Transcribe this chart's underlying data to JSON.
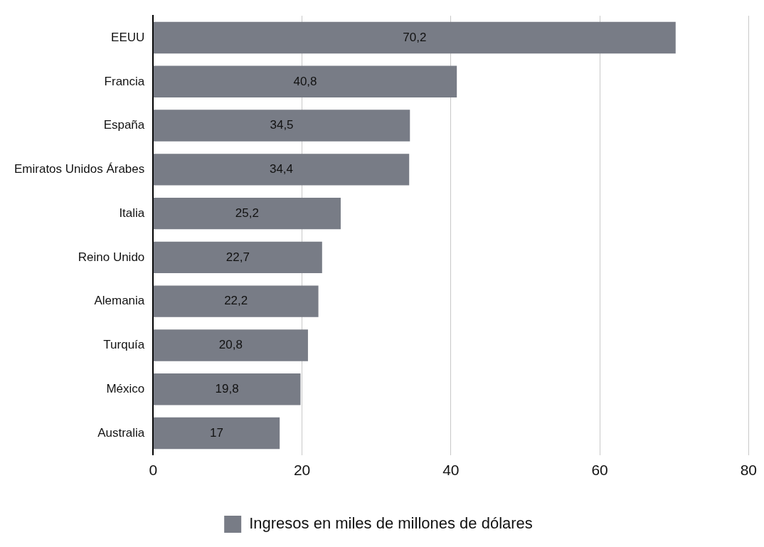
{
  "chart_data": {
    "type": "bar",
    "orientation": "horizontal",
    "categories": [
      "EEUU",
      "Francia",
      "España",
      "Emiratos Unidos Árabes",
      "Italia",
      "Reino Unido",
      "Alemania",
      "Turquía",
      "México",
      "Australia"
    ],
    "series": [
      {
        "name": "Ingresos en miles de millones de dólares",
        "color": "#787c86",
        "values": [
          70.2,
          40.8,
          34.5,
          34.4,
          25.2,
          22.7,
          22.2,
          20.8,
          19.8,
          17
        ],
        "value_labels": [
          "70,2",
          "40,8",
          "34,5",
          "34,4",
          "25,2",
          "22,7",
          "22,2",
          "20,8",
          "19,8",
          "17"
        ]
      }
    ],
    "xlim": [
      0,
      80
    ],
    "xticks": [
      0,
      20,
      40,
      60,
      80
    ],
    "grid": "x",
    "legend": "bottom"
  }
}
